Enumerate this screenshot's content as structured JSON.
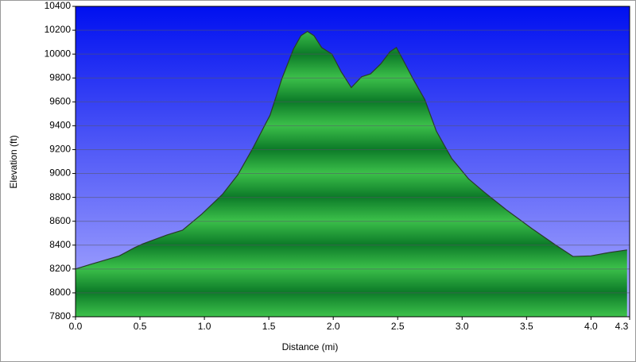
{
  "chart_data": {
    "type": "area",
    "xlabel": "Distance (mi)",
    "ylabel": "Elevation (ft)",
    "x": [
      0,
      0.12,
      0.34,
      0.46,
      0.52,
      0.71,
      0.83,
      0.98,
      1.14,
      1.26,
      1.38,
      1.51,
      1.6,
      1.69,
      1.75,
      1.8,
      1.85,
      1.91,
      1.99,
      2.06,
      2.14,
      2.22,
      2.29,
      2.37,
      2.44,
      2.49,
      2.54,
      2.62,
      2.71,
      2.8,
      2.92,
      3.05,
      3.17,
      3.35,
      3.54,
      3.72,
      3.86,
      4.0,
      4.15,
      4.28
    ],
    "series": [
      {
        "name": "Elevation",
        "color": "#1a9a3a",
        "values": [
          8200,
          8240,
          8310,
          8380,
          8410,
          8485,
          8525,
          8660,
          8825,
          8990,
          9220,
          9490,
          9790,
          10040,
          10155,
          10190,
          10155,
          10055,
          10000,
          9855,
          9720,
          9810,
          9835,
          9920,
          10020,
          10055,
          9955,
          9790,
          9620,
          9355,
          9125,
          8955,
          8845,
          8690,
          8540,
          8405,
          8305,
          8310,
          8340,
          8360
        ]
      }
    ],
    "xlim": [
      0,
      4.3
    ],
    "ylim": [
      7800,
      10400
    ],
    "xticks": [
      {
        "value": 0,
        "label": "0.0"
      },
      0.5,
      {
        "value": 1,
        "label": "1.0"
      },
      1.5,
      {
        "value": 2,
        "label": "2.0"
      },
      2.5,
      {
        "value": 3,
        "label": "3.0"
      },
      3.5,
      {
        "value": 4,
        "label": "4.0"
      },
      4.3
    ],
    "yticks": [
      7800,
      8000,
      8200,
      8400,
      8600,
      8800,
      9000,
      9200,
      9400,
      9600,
      9800,
      10000,
      10200,
      10400
    ],
    "grid": true
  }
}
